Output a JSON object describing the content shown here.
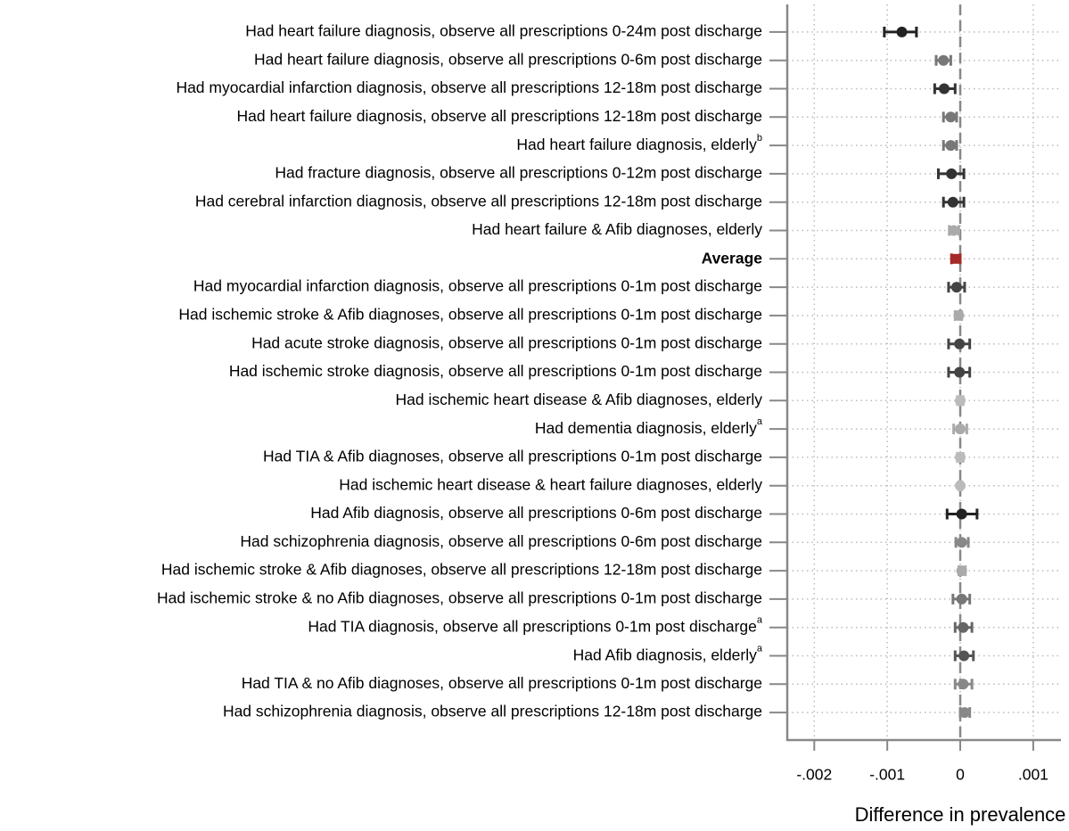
{
  "chart_data": {
    "type": "forest",
    "xlabel": "Difference in prevalence",
    "categories": [
      "Had heart failure diagnosis, observe all prescriptions 0-24m post discharge",
      "Had heart failure diagnosis, observe all prescriptions 0-6m post discharge",
      "Had myocardial infarction diagnosis, observe all prescriptions 12-18m post discharge",
      "Had heart failure diagnosis, observe all prescriptions 12-18m post discharge",
      {
        "text": "Had heart failure diagnosis, elderly",
        "sup": "b"
      },
      "Had fracture diagnosis, observe all prescriptions 0-12m post discharge",
      "Had cerebral infarction diagnosis, observe all prescriptions 12-18m post discharge",
      "Had heart failure & Afib diagnoses, elderly",
      {
        "text": "Average",
        "bold": true
      },
      "Had myocardial infarction diagnosis, observe all prescriptions 0-1m post discharge",
      "Had ischemic stroke & Afib diagnoses, observe all prescriptions 0-1m post discharge",
      "Had acute stroke diagnosis, observe all prescriptions 0-1m post discharge",
      "Had ischemic stroke diagnosis, observe all prescriptions 0-1m post discharge",
      "Had ischemic heart disease & Afib diagnoses, elderly",
      {
        "text": "Had dementia diagnosis, elderly",
        "sup": "a"
      },
      "Had TIA & Afib diagnoses, observe all prescriptions 0-1m post discharge",
      "Had ischemic heart disease & heart failure diagnoses, elderly",
      "Had Afib diagnosis, observe all prescriptions 0-6m post discharge",
      "Had schizophrenia diagnosis, observe all prescriptions 0-6m post discharge",
      "Had ischemic stroke & Afib diagnoses, observe all prescriptions 12-18m post discharge",
      "Had ischemic stroke & no Afib diagnoses, observe all prescriptions 0-1m post discharge",
      {
        "text": "Had TIA diagnosis, observe all prescriptions 0-1m post discharge",
        "sup": "a"
      },
      {
        "text": "Had Afib diagnosis, elderly",
        "sup": "a"
      },
      "Had TIA & no Afib diagnoses, observe all prescriptions 0-1m post discharge",
      "Had schizophrenia diagnosis, observe all prescriptions 12-18m post discharge"
    ],
    "values": [
      -0.0008,
      -0.00023,
      -0.00022,
      -0.00013,
      -0.00013,
      -0.00012,
      -0.0001,
      -9e-05,
      -6e-05,
      -5e-05,
      -2e-05,
      -1e-05,
      -1e-05,
      0,
      0,
      0,
      0,
      2e-05,
      2e-05,
      2e-05,
      2e-05,
      4e-05,
      5e-05,
      4e-05,
      6e-05
    ],
    "ci_low": [
      -0.00104,
      -0.00033,
      -0.00035,
      -0.00023,
      -0.00023,
      -0.0003,
      -0.00023,
      -0.00015,
      -0.00012,
      -0.00016,
      -7e-05,
      -0.00016,
      -0.00016,
      -4e-05,
      -9e-05,
      -4e-05,
      -2e-05,
      -0.00018,
      -6e-05,
      -2e-05,
      -0.0001,
      -7e-05,
      -7e-05,
      -7e-05,
      0
    ],
    "ci_high": [
      -0.0006,
      -0.00013,
      -7e-05,
      -5e-05,
      -5e-05,
      5e-05,
      5e-05,
      -2e-05,
      0,
      6e-05,
      2e-05,
      0.00013,
      0.00013,
      4e-05,
      9e-05,
      4e-05,
      2e-05,
      0.00023,
      0.00011,
      7e-05,
      0.00013,
      0.00016,
      0.00018,
      0.00016,
      0.00013
    ],
    "colors": [
      "#222222",
      "#777777",
      "#333333",
      "#777777",
      "#777777",
      "#333333",
      "#333333",
      "#aaaaaa",
      "#a52a2a",
      "#444444",
      "#aaaaaa",
      "#444444",
      "#444444",
      "#bbbbbb",
      "#aaaaaa",
      "#bbbbbb",
      "#bbbbbb",
      "#222222",
      "#888888",
      "#aaaaaa",
      "#777777",
      "#666666",
      "#555555",
      "#888888",
      "#888888"
    ],
    "square_marker": [
      8
    ],
    "xlim": [
      -0.00237,
      0.00138
    ],
    "xticks": [
      {
        "value": -0.002,
        "label": "-.002"
      },
      {
        "value": -0.001,
        "label": "-.001"
      },
      0,
      {
        "value": 0.001,
        "label": ".001"
      }
    ],
    "ref_line": 0,
    "grid": true
  }
}
